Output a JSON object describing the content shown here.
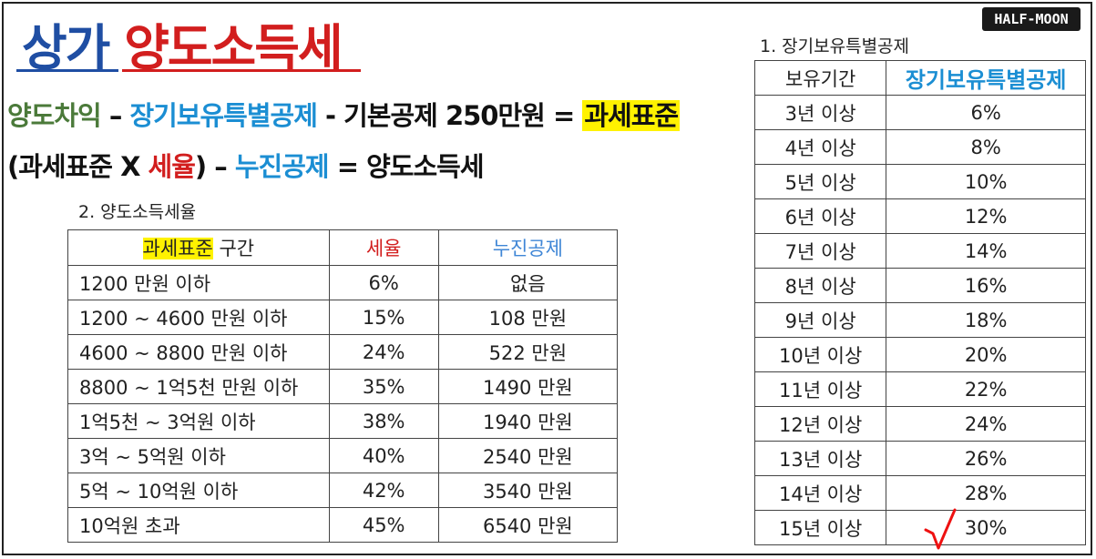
{
  "logo": "HALF-MOON",
  "title": {
    "part1": "상가",
    "part2": "양도소득세"
  },
  "formula1": {
    "a": "양도차익",
    "sep1": " – ",
    "b": "장기보유특별공제",
    "sep2": " - ",
    "c": "기본공제 250만원",
    "eq": " = ",
    "d": "과세표준"
  },
  "formula2": {
    "open": "(과세표준 X ",
    "rate": "세율",
    "close": ")",
    "sep": " – ",
    "deduct": "누진공제",
    "rest": " = 양도소득세"
  },
  "rate_table": {
    "label": "2. 양도소득세율",
    "headers": {
      "range_hl": "과세표준",
      "range_rest": " 구간",
      "rate": "세율",
      "deduction": "누진공제"
    },
    "rows": [
      {
        "range": "1200 만원 이하",
        "rate": "6%",
        "deduction": "없음"
      },
      {
        "range": "1200 ~ 4600 만원 이하",
        "rate": "15%",
        "deduction": "108 만원"
      },
      {
        "range": "4600 ~ 8800 만원 이하",
        "rate": "24%",
        "deduction": "522 만원"
      },
      {
        "range": "8800 ~ 1억5천 만원 이하",
        "rate": "35%",
        "deduction": "1490 만원"
      },
      {
        "range": "1억5천 ~ 3억원 이하",
        "rate": "38%",
        "deduction": "1940 만원"
      },
      {
        "range": "3억 ~ 5억원 이하",
        "rate": "40%",
        "deduction": "2540 만원"
      },
      {
        "range": "5억 ~ 10억원 이하",
        "rate": "42%",
        "deduction": "3540 만원"
      },
      {
        "range": "10억원 초과",
        "rate": "45%",
        "deduction": "6540 만원"
      }
    ]
  },
  "ltd_table": {
    "label": "1. 장기보유특별공제",
    "headers": {
      "period": "보유기간",
      "deduction": "장기보유특별공제"
    },
    "rows": [
      {
        "period": "3년 이상",
        "deduction": "6%"
      },
      {
        "period": "4년 이상",
        "deduction": "8%"
      },
      {
        "period": "5년 이상",
        "deduction": "10%"
      },
      {
        "period": "6년 이상",
        "deduction": "12%"
      },
      {
        "period": "7년 이상",
        "deduction": "14%"
      },
      {
        "period": "8년 이상",
        "deduction": "16%"
      },
      {
        "period": "9년 이상",
        "deduction": "18%"
      },
      {
        "period": "10년 이상",
        "deduction": "20%"
      },
      {
        "period": "11년 이상",
        "deduction": "22%"
      },
      {
        "period": "12년 이상",
        "deduction": "24%"
      },
      {
        "period": "13년 이상",
        "deduction": "26%"
      },
      {
        "period": "14년 이상",
        "deduction": "28%"
      },
      {
        "period": "15년 이상",
        "deduction": "30%"
      }
    ]
  },
  "colors": {
    "title_blue": "#1f4ea3",
    "red": "#d21e1e",
    "blue": "#1b8ed3",
    "green": "#4b7a3a",
    "highlight": "#fff200"
  },
  "icons": {
    "check": "checkmark-icon"
  }
}
